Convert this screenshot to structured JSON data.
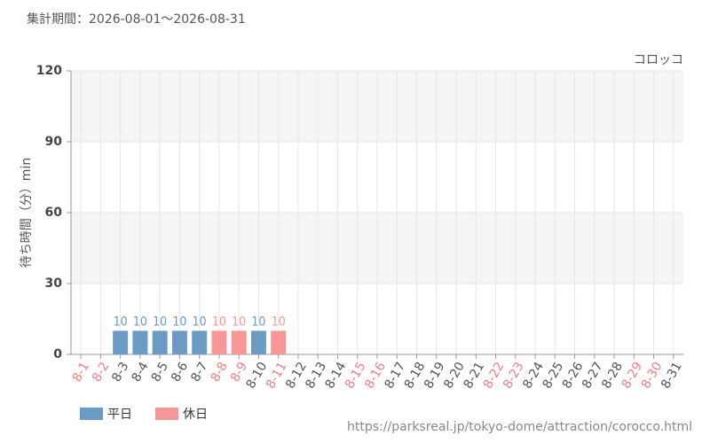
{
  "chart_data": {
    "type": "bar",
    "title": "集計期間：2026-08-01～2026-08-31",
    "subtitle": "コロッコ",
    "y_label": "待ち時間（分）min",
    "source": "https://parksreal.jp/tokyo-dome/attraction/corocco.html",
    "categories": [
      "8-1",
      "8-2",
      "8-3",
      "8-4",
      "8-5",
      "8-6",
      "8-7",
      "8-8",
      "8-9",
      "8-10",
      "8-11",
      "8-12",
      "8-13",
      "8-14",
      "8-15",
      "8-16",
      "8-17",
      "8-18",
      "8-19",
      "8-20",
      "8-21",
      "8-22",
      "8-23",
      "8-24",
      "8-25",
      "8-26",
      "8-27",
      "8-28",
      "8-29",
      "8-30",
      "8-31"
    ],
    "category_colors": [
      "#f08080",
      "#f08080",
      "#555555",
      "#555555",
      "#555555",
      "#555555",
      "#555555",
      "#f08080",
      "#f08080",
      "#555555",
      "#f08080",
      "#555555",
      "#555555",
      "#555555",
      "#f08080",
      "#f08080",
      "#555555",
      "#555555",
      "#555555",
      "#555555",
      "#555555",
      "#f08080",
      "#f08080",
      "#555555",
      "#555555",
      "#555555",
      "#555555",
      "#555555",
      "#f08080",
      "#f08080",
      "#555555"
    ],
    "series": [
      {
        "name": "平日",
        "color": "#6b9ac4",
        "values": [
          null,
          null,
          10,
          10,
          10,
          10,
          10,
          null,
          null,
          10,
          null,
          null,
          null,
          null,
          null,
          null,
          null,
          null,
          null,
          null,
          null,
          null,
          null,
          null,
          null,
          null,
          null,
          null,
          null,
          null,
          null
        ]
      },
      {
        "name": "休日",
        "color": "#f79696",
        "values": [
          null,
          null,
          null,
          null,
          null,
          null,
          null,
          10,
          10,
          null,
          10,
          null,
          null,
          null,
          null,
          null,
          null,
          null,
          null,
          null,
          null,
          null,
          null,
          null,
          null,
          null,
          null,
          null,
          null,
          null,
          null
        ]
      }
    ],
    "ylim": [
      0,
      120
    ],
    "yticks": [
      0,
      30,
      60,
      90,
      120
    ],
    "grid": true
  }
}
